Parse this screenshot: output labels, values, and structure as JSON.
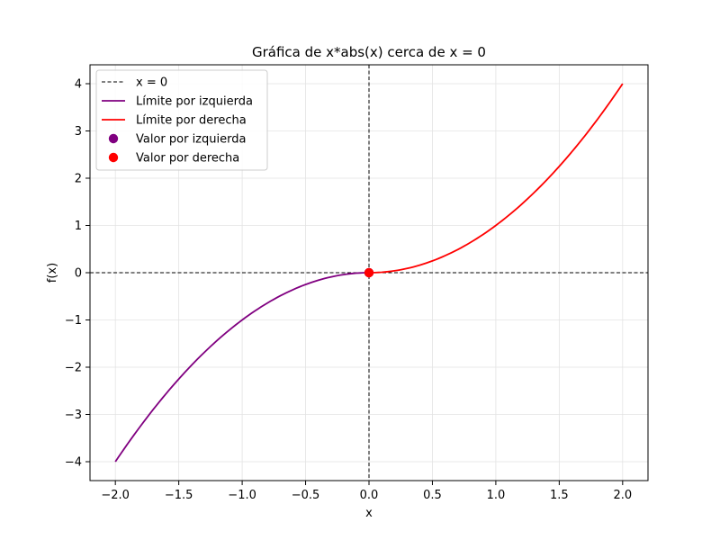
{
  "chart_data": {
    "type": "line",
    "title": "Gráfica de x*abs(x) cerca de x = 0",
    "xlabel": "x",
    "ylabel": "f(x)",
    "xlim": [
      -2.2,
      2.2
    ],
    "ylim": [
      -4.4,
      4.4
    ],
    "xticks": [
      -2.0,
      -1.5,
      -1.0,
      -0.5,
      0.0,
      0.5,
      1.0,
      1.5,
      2.0
    ],
    "xtick_labels": [
      "−2.0",
      "−1.5",
      "−1.0",
      "−0.5",
      "0.0",
      "0.5",
      "1.0",
      "1.5",
      "2.0"
    ],
    "yticks": [
      -4,
      -3,
      -2,
      -1,
      0,
      1,
      2,
      3,
      4
    ],
    "ytick_labels": [
      "−4",
      "−3",
      "−2",
      "−1",
      "0",
      "1",
      "2",
      "3",
      "4"
    ],
    "grid": true,
    "legend_position": "top-left",
    "series": [
      {
        "name": "x = 0",
        "kind": "reference-line",
        "color": "#000000",
        "style": "dashed",
        "x": [
          0,
          0
        ],
        "y": [
          -4.4,
          4.4
        ]
      },
      {
        "name": "Límite por izquierda",
        "kind": "line",
        "color": "#800080",
        "style": "solid",
        "x": [
          -2.0,
          -1.75,
          -1.5,
          -1.25,
          -1.0,
          -0.75,
          -0.5,
          -0.25,
          0.0
        ],
        "y": [
          -4.0,
          -3.0625,
          -2.25,
          -1.5625,
          -1.0,
          -0.5625,
          -0.25,
          -0.0625,
          0.0
        ]
      },
      {
        "name": "Límite por derecha",
        "kind": "line",
        "color": "#ff0000",
        "style": "solid",
        "x": [
          0.0,
          0.25,
          0.5,
          0.75,
          1.0,
          1.25,
          1.5,
          1.75,
          2.0
        ],
        "y": [
          0.0,
          0.0625,
          0.25,
          0.5625,
          1.0,
          1.5625,
          2.25,
          3.0625,
          4.0
        ]
      },
      {
        "name": "Valor por izquierda",
        "kind": "point",
        "color": "#800080",
        "x": [
          0.0
        ],
        "y": [
          0.0
        ]
      },
      {
        "name": "Valor por derecha",
        "kind": "point",
        "color": "#ff0000",
        "x": [
          0.0
        ],
        "y": [
          0.0
        ]
      }
    ],
    "reference_lines": [
      {
        "orientation": "horizontal",
        "value": 0,
        "color": "#000000",
        "style": "dashed"
      }
    ]
  }
}
